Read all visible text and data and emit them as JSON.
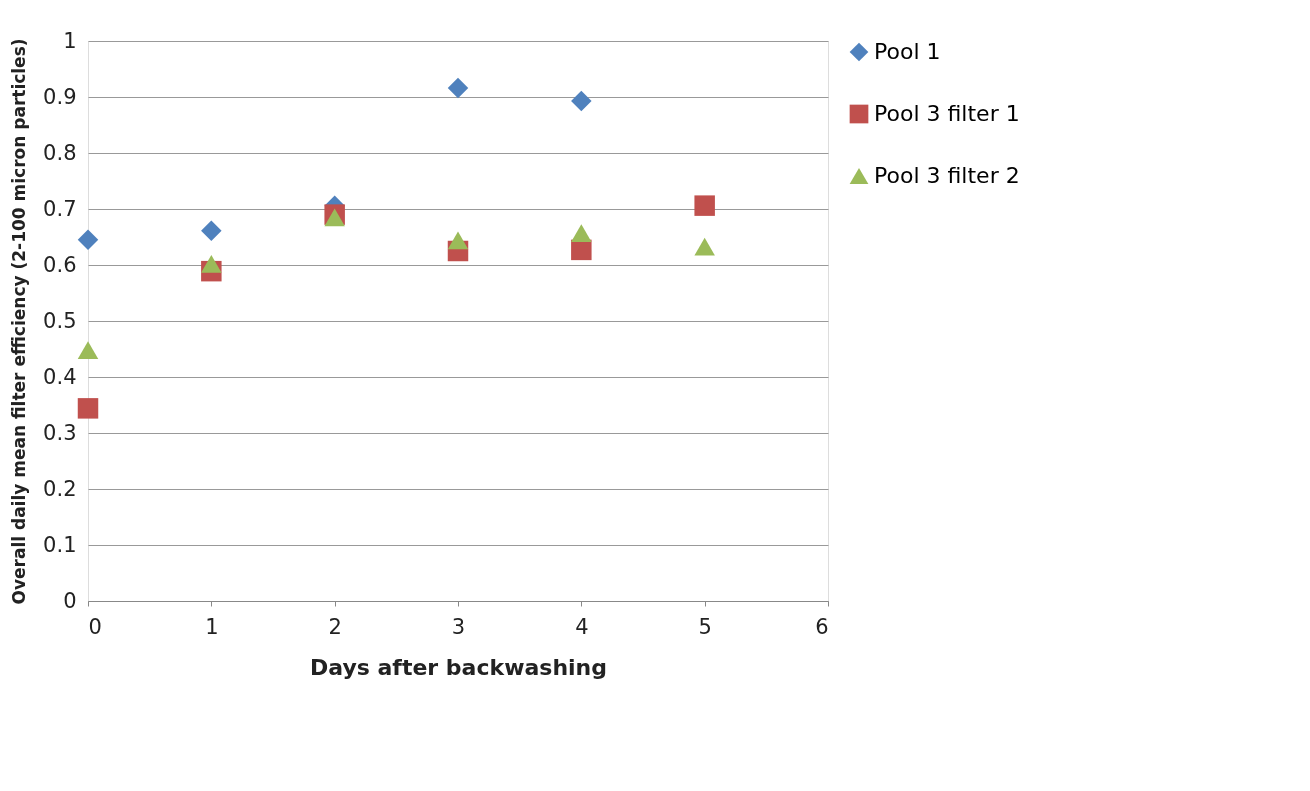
{
  "chart_data": {
    "type": "scatter",
    "xlabel": "Days after backwashing",
    "ylabel": "Overall daily mean filter efficiency (2-100 micron particles)",
    "xlim": [
      0,
      6
    ],
    "xticks": [
      0,
      1,
      2,
      3,
      4,
      5,
      6
    ],
    "ylim": [
      0,
      1
    ],
    "yticks": [
      0,
      0.1,
      0.2,
      0.3,
      0.4,
      0.5,
      0.6,
      0.7,
      0.8,
      0.9,
      1
    ],
    "grid": "y",
    "legend": "right",
    "series": [
      {
        "name": "Pool 1",
        "color": "#4f81bd",
        "marker": "diamond",
        "x": [
          0,
          1,
          2,
          3,
          4
        ],
        "values": [
          0.645,
          0.661,
          0.706,
          0.916,
          0.893
        ]
      },
      {
        "name": "Pool 3 filter 1",
        "color": "#c0504d",
        "marker": "square",
        "x": [
          0,
          1,
          2,
          3,
          4,
          5
        ],
        "values": [
          0.344,
          0.589,
          0.69,
          0.625,
          0.627,
          0.706
        ]
      },
      {
        "name": "Pool 3 filter 2",
        "color": "#9bbb59",
        "marker": "triangle",
        "x": [
          0,
          1,
          2,
          3,
          4,
          5
        ],
        "values": [
          0.448,
          0.602,
          0.685,
          0.644,
          0.657,
          0.633
        ]
      }
    ]
  }
}
